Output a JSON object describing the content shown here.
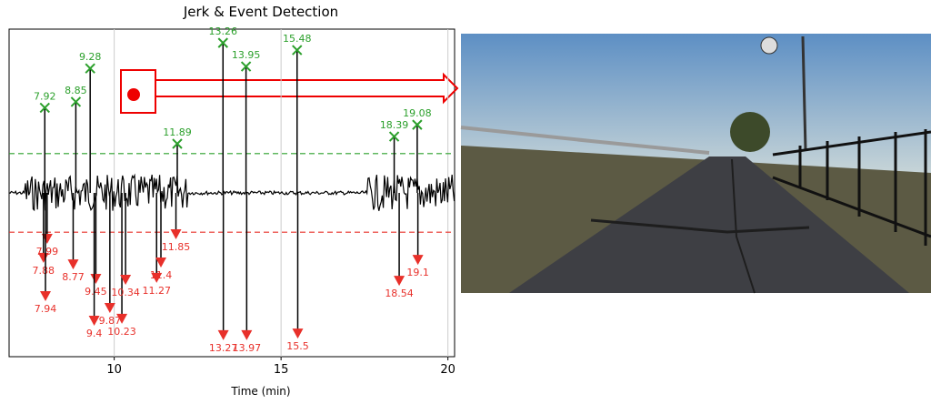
{
  "chart_data": {
    "type": "stem",
    "title": "Jerk & Event Detection",
    "x_label": "Time (min)",
    "xlim": [
      6.85,
      20.2
    ],
    "xticks": [
      10,
      15,
      20
    ],
    "ylim": [
      -5,
      5
    ],
    "grid": true,
    "thresholds": [
      {
        "value": 1.2,
        "color": "#2ca02c"
      },
      {
        "value": -1.2,
        "color": "#e8302a"
      }
    ],
    "series": [
      {
        "color": "#2ca02c",
        "marker": "x",
        "x": [
          7.92,
          8.85,
          9.28,
          11.89,
          13.26,
          13.95,
          15.48,
          18.39,
          19.08
        ],
        "values": [
          2.6,
          2.78,
          3.8,
          1.5,
          4.58,
          3.86,
          4.36,
          1.72,
          2.08
        ]
      },
      {
        "color": "#e8302a",
        "marker": "triangle",
        "x": [
          7.99,
          7.88,
          7.94,
          8.77,
          9.45,
          9.4,
          9.87,
          10.23,
          10.34,
          11.27,
          11.4,
          11.85,
          13.27,
          13.97,
          15.5,
          18.54,
          19.1
        ],
        "values": [
          -1.39,
          -1.97,
          -3.14,
          -2.17,
          -2.61,
          -3.89,
          -3.5,
          -3.83,
          -2.64,
          -2.58,
          -2.11,
          -1.25,
          -4.33,
          -4.33,
          -4.28,
          -2.67,
          -2.03
        ]
      }
    ]
  }
}
